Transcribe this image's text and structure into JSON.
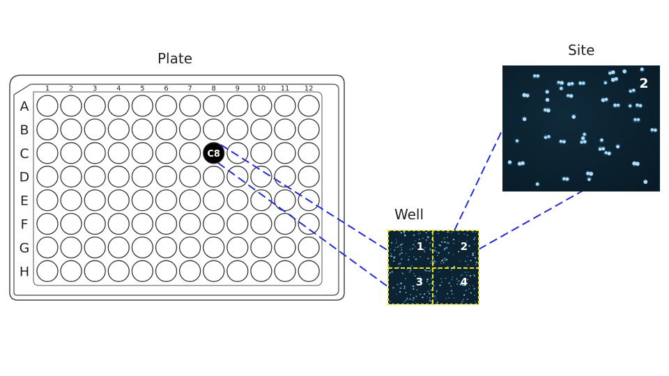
{
  "titles": {
    "plate": "Plate",
    "well": "Well",
    "site": "Site"
  },
  "plate": {
    "columns": [
      "1",
      "2",
      "3",
      "4",
      "5",
      "6",
      "7",
      "8",
      "9",
      "10",
      "11",
      "12"
    ],
    "rows": [
      "A",
      "B",
      "C",
      "D",
      "E",
      "F",
      "G",
      "H"
    ],
    "selected_well": {
      "label": "C8",
      "row": "C",
      "column": "8"
    }
  },
  "well": {
    "sites": [
      "1",
      "2",
      "3",
      "4"
    ]
  },
  "site": {
    "label": "2"
  },
  "colors": {
    "plate_outline": "#444444",
    "connector_line": "#1f2ad6",
    "site_grid_dash": "#e6e61a",
    "well_border": "#e6e61a",
    "image_background": "#0b2333",
    "cell_stain": "#8fd3ff",
    "selected_well_fill": "#000000"
  }
}
